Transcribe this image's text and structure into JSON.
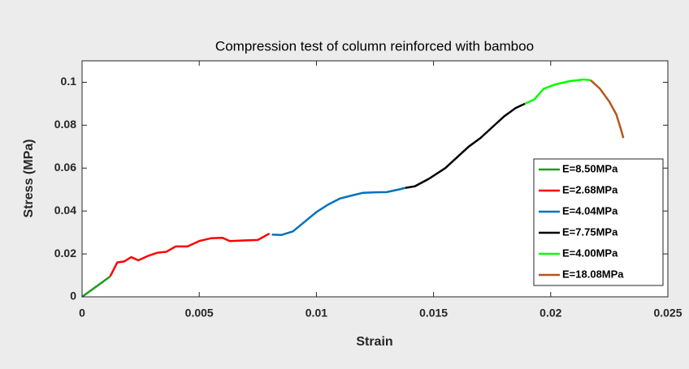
{
  "chart_data": {
    "type": "line",
    "title": "Compression test of column reinforced with bamboo",
    "x_label": "Strain",
    "y_label": "Stress (MPa)",
    "xlim": [
      0,
      0.025
    ],
    "xticks": [
      0,
      0.005,
      0.01,
      0.015,
      0.02,
      0.025
    ],
    "ylim": [
      0,
      0.11
    ],
    "yticks": [
      0,
      0.02,
      0.04,
      0.06,
      0.08,
      0.1
    ],
    "grid": false,
    "legend_position": "lower right",
    "series": [
      {
        "name": "E=8.50MPa",
        "color": "#1f9a1f",
        "x": [
          0,
          0.0012
        ],
        "values": [
          0,
          0.0095
        ]
      },
      {
        "name": "E=2.68MPa",
        "color": "#ff0000",
        "x": [
          0.0012,
          0.0015,
          0.0018,
          0.0021,
          0.0024,
          0.0028,
          0.0032,
          0.0036,
          0.004,
          0.0045,
          0.005,
          0.0055,
          0.006,
          0.0063,
          0.007,
          0.0075,
          0.008
        ],
        "values": [
          0.0095,
          0.016,
          0.0165,
          0.0185,
          0.017,
          0.019,
          0.0205,
          0.021,
          0.0235,
          0.0235,
          0.026,
          0.0273,
          0.0275,
          0.026,
          0.0263,
          0.0265,
          0.0295
        ]
      },
      {
        "name": "E=4.04MPa",
        "color": "#0072bd",
        "x": [
          0.0081,
          0.0085,
          0.009,
          0.0095,
          0.01,
          0.0105,
          0.011,
          0.0115,
          0.012,
          0.0125,
          0.013,
          0.0135,
          0.0138
        ],
        "values": [
          0.029,
          0.0288,
          0.0305,
          0.035,
          0.0395,
          0.043,
          0.0458,
          0.0472,
          0.0485,
          0.0487,
          0.0488,
          0.05,
          0.0508
        ]
      },
      {
        "name": "E=7.75MPa",
        "color": "#000000",
        "x": [
          0.0138,
          0.0142,
          0.0148,
          0.0155,
          0.016,
          0.0165,
          0.017,
          0.0175,
          0.018,
          0.0185,
          0.0189
        ],
        "values": [
          0.0508,
          0.0515,
          0.055,
          0.06,
          0.065,
          0.07,
          0.074,
          0.079,
          0.084,
          0.088,
          0.09
        ]
      },
      {
        "name": "E=4.00MPa",
        "color": "#00ff00",
        "x": [
          0.0189,
          0.0193,
          0.0197,
          0.0202,
          0.0208,
          0.0214,
          0.0217
        ],
        "values": [
          0.09,
          0.092,
          0.097,
          0.099,
          0.1005,
          0.1013,
          0.101
        ]
      },
      {
        "name": "E=18.08MPa",
        "color": "#b5561e",
        "x": [
          0.0217,
          0.0221,
          0.0225,
          0.0228,
          0.023,
          0.0231
        ],
        "values": [
          0.101,
          0.097,
          0.091,
          0.085,
          0.078,
          0.074
        ]
      }
    ]
  }
}
